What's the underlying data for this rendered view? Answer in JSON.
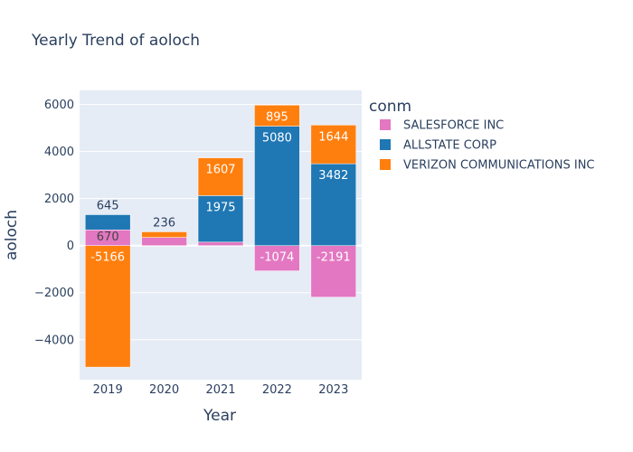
{
  "chart_data": {
    "type": "bar",
    "barmode": "relative",
    "title": "Yearly Trend of aoloch",
    "xlabel": "Year",
    "ylabel": "aoloch",
    "categories": [
      "2019",
      "2020",
      "2021",
      "2022",
      "2023"
    ],
    "ylim": [
      -5700,
      6600
    ],
    "yticks": [
      -4000,
      -2000,
      0,
      2000,
      4000,
      6000
    ],
    "ytick_labels": [
      "−4000",
      "−2000",
      "0",
      "2000",
      "4000",
      "6000"
    ],
    "legend_title": "conm",
    "legend_position": "right",
    "series": [
      {
        "name": "SALESFORCE INC",
        "color": "#e377c2",
        "values": [
          670,
          350,
          150,
          -1074,
          -2191
        ],
        "labels": [
          "670",
          "",
          "",
          "-1074",
          "-2191"
        ]
      },
      {
        "name": "ALLSTATE CORP",
        "color": "#1f77b4",
        "values": [
          645,
          0,
          1975,
          5080,
          3482
        ],
        "labels": [
          "645",
          "",
          "1975",
          "5080",
          "3482"
        ]
      },
      {
        "name": "VERIZON COMMUNICATIONS INC",
        "color": "#ff7f0e",
        "values": [
          -5166,
          236,
          1607,
          895,
          1644
        ],
        "labels": [
          "-5166",
          "236",
          "1607",
          "895",
          "1644"
        ]
      }
    ]
  }
}
